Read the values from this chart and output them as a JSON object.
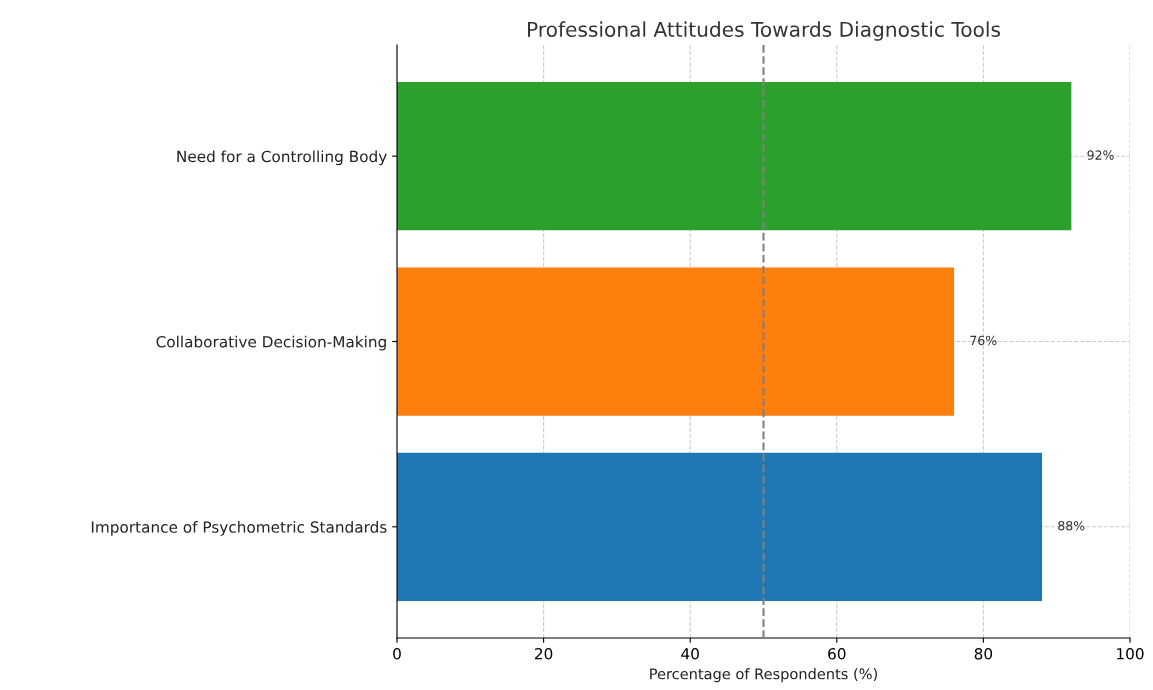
{
  "chart_data": {
    "type": "bar",
    "orientation": "horizontal",
    "title": "Professional Attitudes Towards Diagnostic Tools",
    "xlabel": "Percentage of Respondents (%)",
    "categories": [
      "Need for a Controlling Body",
      "Collaborative Decision-Making",
      "Importance of Psychometric Standards"
    ],
    "values": [
      92,
      76,
      88
    ],
    "colors": [
      "#2ca02c",
      "#ff7f0e",
      "#1f77b4"
    ],
    "value_labels": [
      "92%",
      "76%",
      "88%"
    ],
    "xlim": [
      0,
      100
    ],
    "xticks": [
      0,
      20,
      40,
      60,
      80,
      100
    ],
    "grid": true,
    "ref_lines": [
      {
        "axis": "x",
        "value": 50,
        "color": "#808080",
        "line_style": "dashed"
      }
    ]
  }
}
